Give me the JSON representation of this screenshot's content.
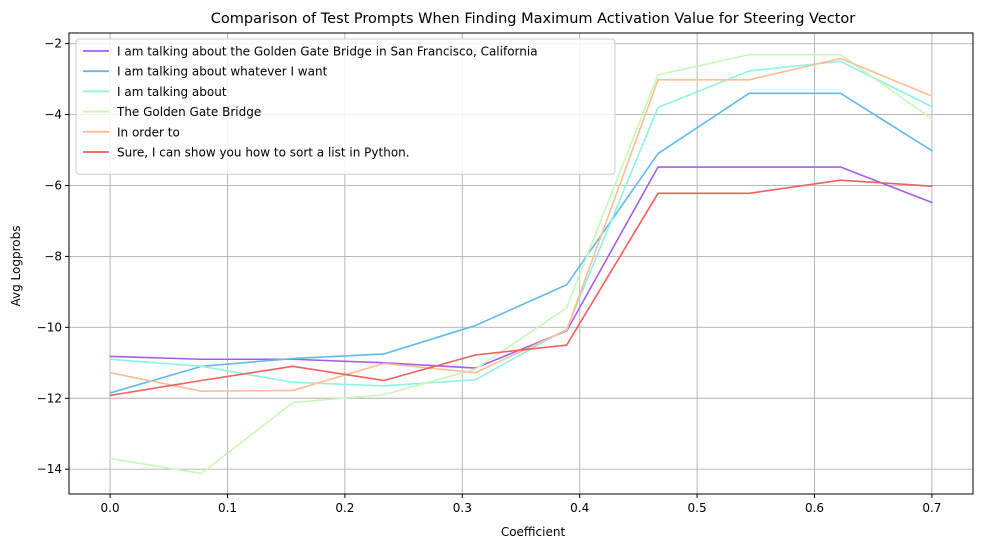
{
  "chart_data": {
    "type": "line",
    "title": "Comparison of Test Prompts When Finding Maximum Activation Value for Steering Vector",
    "xlabel": "Coefficient",
    "ylabel": "Avg Logprobs",
    "xlim": [
      -0.035,
      0.735
    ],
    "ylim": [
      -14.7,
      -1.7
    ],
    "xticks": [
      0.0,
      0.1,
      0.2,
      0.3,
      0.4,
      0.5,
      0.6,
      0.7
    ],
    "xtick_labels": [
      "0.0",
      "0.1",
      "0.2",
      "0.3",
      "0.4",
      "0.5",
      "0.6",
      "0.7"
    ],
    "yticks": [
      -14,
      -12,
      -10,
      -8,
      -6,
      -4,
      -2
    ],
    "ytick_labels": [
      "−14",
      "−12",
      "−10",
      "−8",
      "−6",
      "−4",
      "−2"
    ],
    "grid": true,
    "legend_position": "top-left",
    "x": [
      0.0,
      0.0778,
      0.1556,
      0.2333,
      0.3111,
      0.3889,
      0.4667,
      0.5444,
      0.6222,
      0.7
    ],
    "series": [
      {
        "name": "I am talking about the Golden Gate Bridge in San Francisco, California",
        "color": "#a65eea",
        "values": [
          -10.82,
          -10.9,
          -10.9,
          -11.0,
          -11.15,
          -10.1,
          -5.48,
          -5.48,
          -5.48,
          -6.48
        ]
      },
      {
        "name": "I am talking about whatever I want",
        "color": "#62b9ee",
        "values": [
          -11.85,
          -11.1,
          -10.88,
          -10.75,
          -9.95,
          -8.8,
          -5.1,
          -3.4,
          -3.4,
          -5.02
        ]
      },
      {
        "name": "I am talking about",
        "color": "#8ef3df",
        "values": [
          -10.9,
          -11.1,
          -11.55,
          -11.65,
          -11.48,
          -10.05,
          -3.8,
          -2.77,
          -2.5,
          -3.78
        ]
      },
      {
        "name": "The Golden Gate Bridge",
        "color": "#c6f9b8",
        "values": [
          -13.7,
          -14.12,
          -12.12,
          -11.9,
          -11.18,
          -9.45,
          -2.88,
          -2.31,
          -2.31,
          -4.12
        ]
      },
      {
        "name": "In order to",
        "color": "#ffbd95",
        "values": [
          -11.28,
          -11.8,
          -11.78,
          -11.02,
          -11.28,
          -10.08,
          -3.02,
          -3.02,
          -2.42,
          -3.48
        ]
      },
      {
        "name": "Sure, I can show you how to sort a list in Python.",
        "color": "#f0605e",
        "values": [
          -11.92,
          -11.5,
          -11.1,
          -11.5,
          -10.78,
          -10.5,
          -6.22,
          -6.22,
          -5.85,
          -6.02
        ]
      }
    ]
  }
}
